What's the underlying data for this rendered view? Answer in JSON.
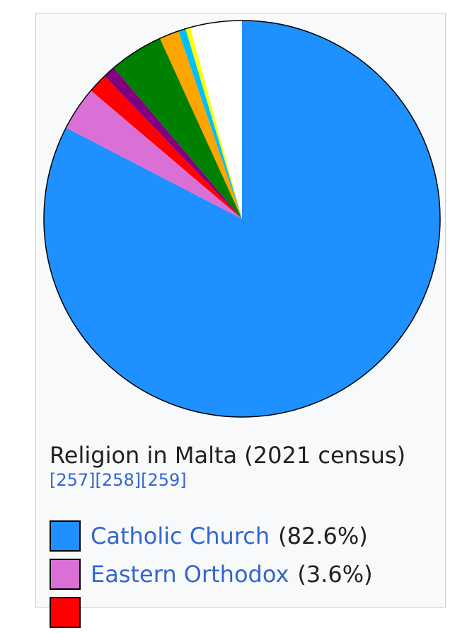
{
  "chart_data": {
    "type": "pie",
    "title": "Religion in Malta (2021 census)",
    "refs": [
      "[257]",
      "[258]",
      "[259]"
    ],
    "slices": [
      {
        "label": "Catholic Church",
        "value": 82.6,
        "pct_label": "(82.6%)",
        "color": "#1e90ff"
      },
      {
        "value": 3.6,
        "color": "#da70d6"
      },
      {
        "value": 1.6,
        "color": "#ff0000"
      },
      {
        "value": 1.0,
        "color": "#800080"
      },
      {
        "value": 4.4,
        "color": "#008000"
      },
      {
        "value": 1.6,
        "color": "#ffa500"
      },
      {
        "value": 0.6,
        "color": "#00bfff"
      },
      {
        "value": 0.4,
        "color": "#ffff00"
      },
      {
        "value": 4.2,
        "color": "#ffffff"
      }
    ],
    "legend": [
      {
        "label": "Catholic Church",
        "pct": "(82.6%)",
        "color": "#1e90ff"
      },
      {
        "label": "Eastern Orthodox",
        "pct": "(3.6%)",
        "color": "#da70d6"
      },
      {
        "label": "",
        "pct": "",
        "color": "#ff0000"
      }
    ]
  }
}
